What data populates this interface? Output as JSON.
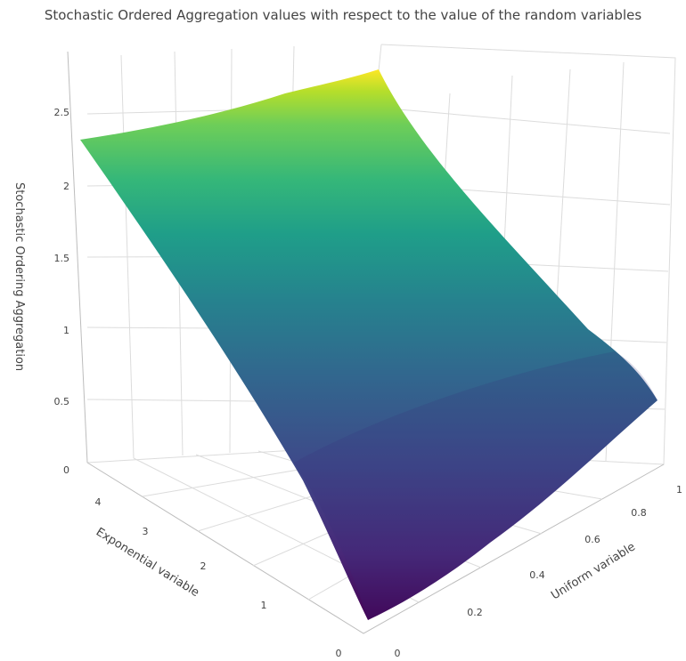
{
  "chart_data": {
    "type": "surface",
    "title": "Stochastic Ordered Aggregation values with respect to the value of the random variables",
    "zlabel": "Stochastic Ordering Aggregation",
    "xlabel": "Exponential variable",
    "ylabel": "Uniform variable",
    "z_ticks": [
      "0",
      "0.5",
      "1",
      "1.5",
      "2",
      "2.5"
    ],
    "x_ticks": [
      "0",
      "1",
      "2",
      "3",
      "4"
    ],
    "y_ticks": [
      "0",
      "0.2",
      "0.4",
      "0.6",
      "0.8",
      "1"
    ],
    "zlim": [
      0,
      2.7
    ],
    "colorscale": "viridis",
    "surface_corners": [
      {
        "exponential": 0,
        "uniform": 0,
        "value": 0.0
      },
      {
        "exponential": 0,
        "uniform": 1,
        "value": 0.6
      },
      {
        "exponential": 4.5,
        "uniform": 0,
        "value": 2.3
      },
      {
        "exponential": 4.5,
        "uniform": 1,
        "value": 2.6
      }
    ],
    "grid": true,
    "colors": {
      "low": "#440154",
      "mid": "#21918c",
      "high": "#fde725"
    }
  }
}
